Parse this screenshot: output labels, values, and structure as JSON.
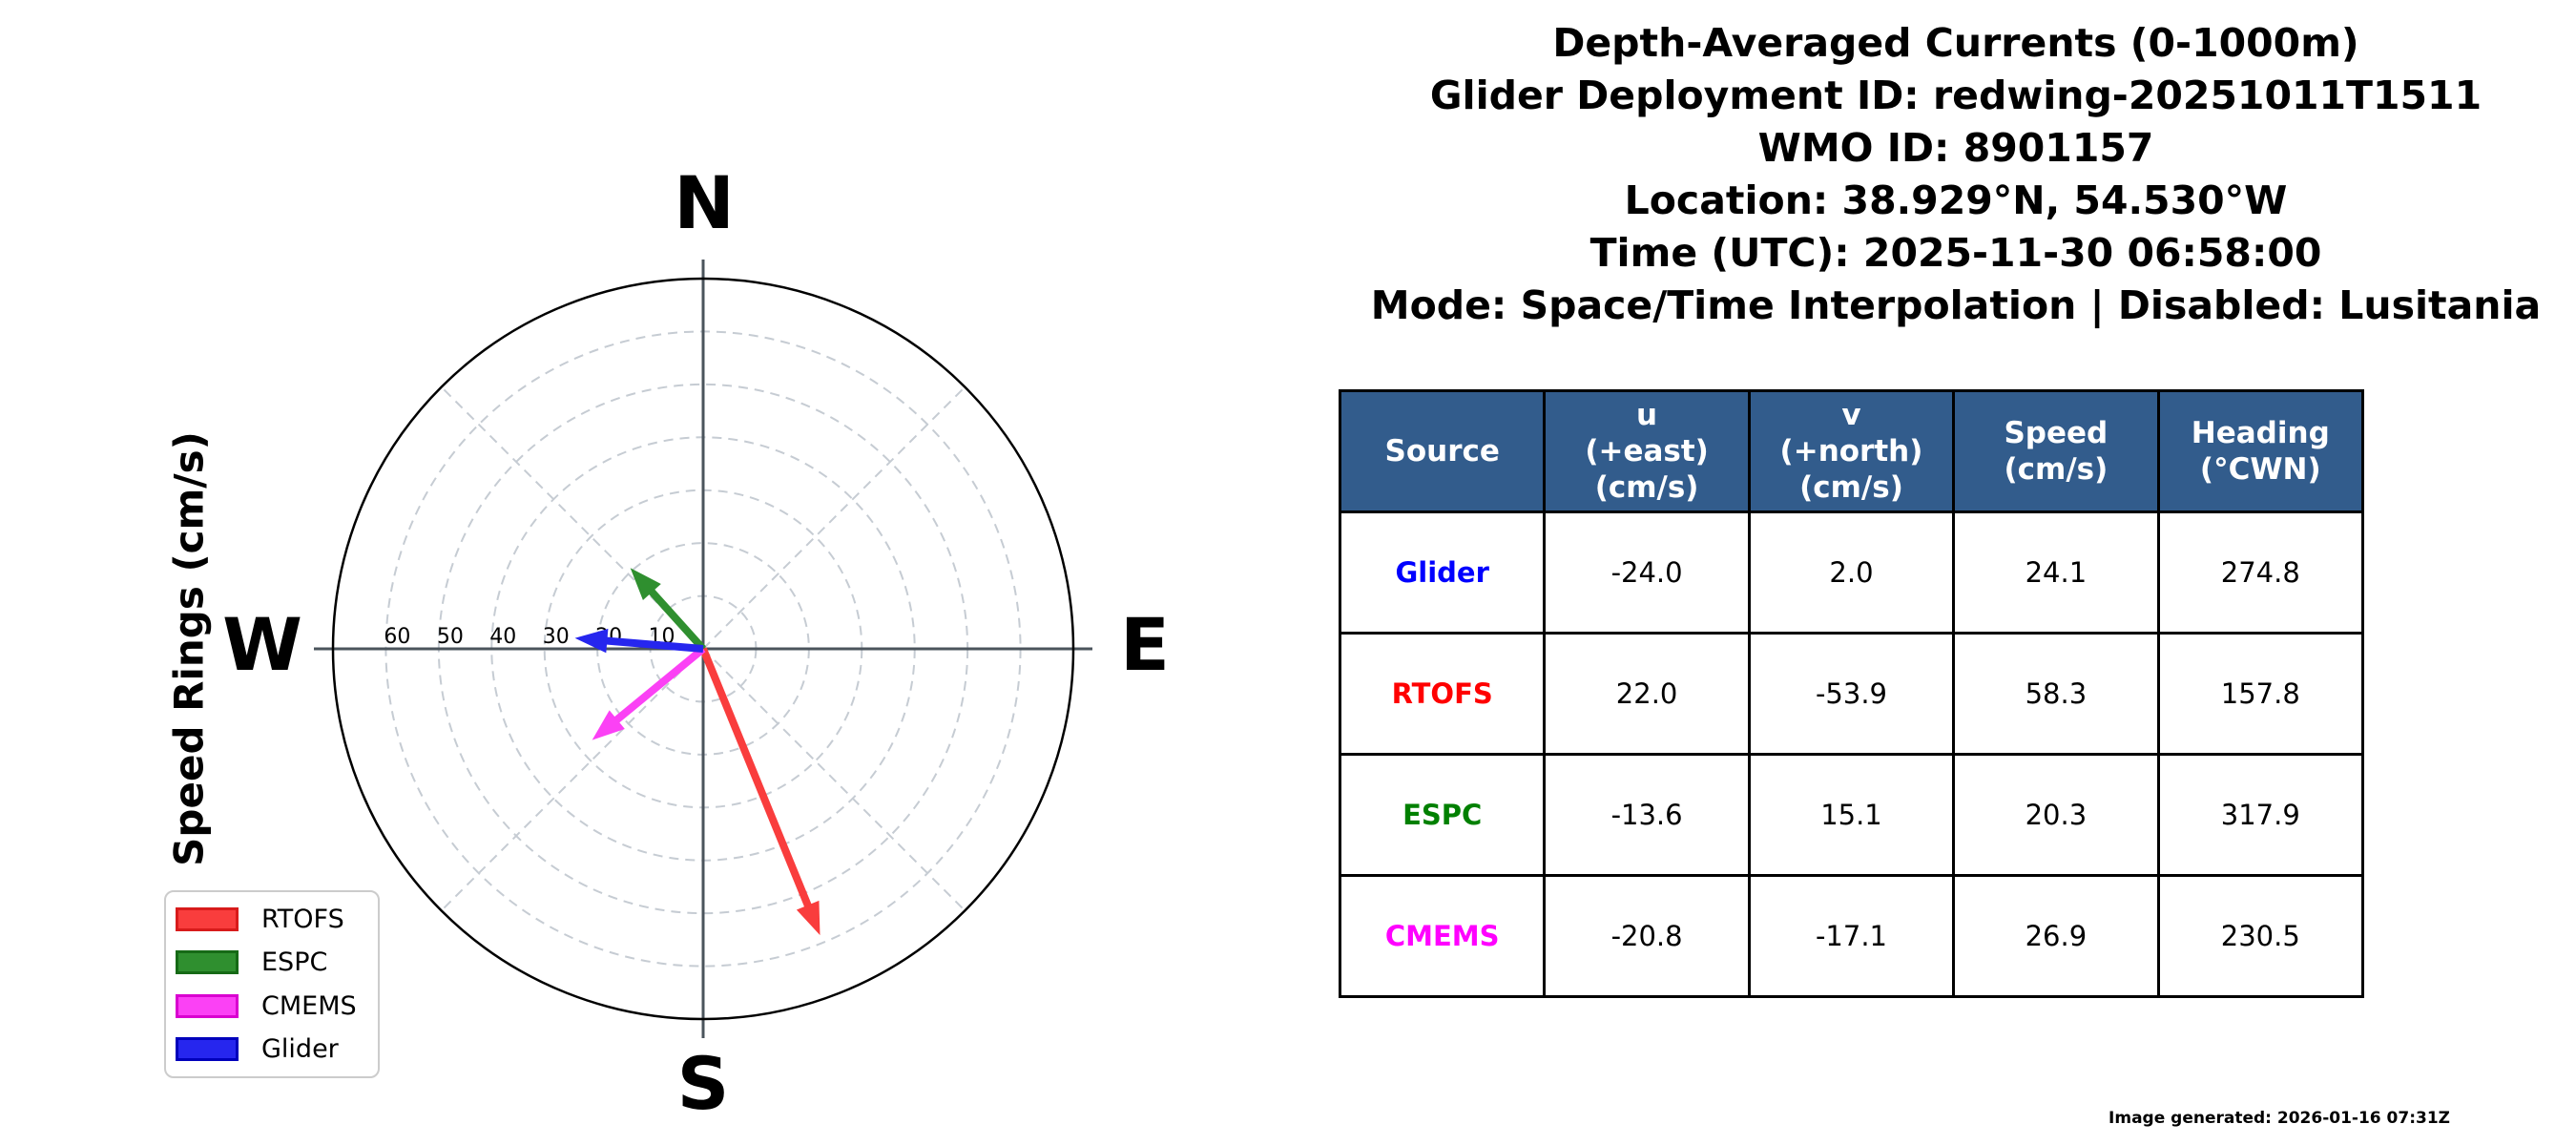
{
  "header": {
    "lines": [
      "Depth-Averaged Currents (0-1000m)",
      "Glider Deployment ID: redwing-20251011T1511",
      "WMO ID: 8901157",
      "Location: 38.929°N, 54.530°W",
      "Time (UTC): 2025-11-30 06:58:00",
      "Mode: Space/Time Interpolation | Disabled: Lusitania"
    ]
  },
  "polar": {
    "cardinal": {
      "north": "N",
      "east": "E",
      "south": "S",
      "west": "W"
    },
    "axis_label": "Speed Rings (cm/s)",
    "ring_ticks_cms": [
      10,
      20,
      30,
      40,
      50,
      60
    ],
    "r_max_cms": 70,
    "grid_color": "#c6ccd3",
    "spoke_color": "#4b545c",
    "outline_color": "#000000"
  },
  "legend": {
    "items": [
      {
        "label": "RTOFS",
        "color": "#f93d3d",
        "edge": "#d81b1b"
      },
      {
        "label": "ESPC",
        "color": "#2f8f2f",
        "edge": "#166a16"
      },
      {
        "label": "CMEMS",
        "color": "#fb41f5",
        "edge": "#d900d0"
      },
      {
        "label": "Glider",
        "color": "#2626ee",
        "edge": "#0000bb"
      }
    ]
  },
  "table": {
    "header_bg": "#325c8c",
    "headers": [
      "Source",
      "u\n(+east)\n(cm/s)",
      "v\n(+north)\n(cm/s)",
      "Speed\n(cm/s)",
      "Heading\n(°CWN)"
    ],
    "rows": [
      {
        "source": "Glider",
        "color": "#0000ff",
        "u": "-24.0",
        "v": "2.0",
        "speed": "24.1",
        "heading": "274.8"
      },
      {
        "source": "RTOFS",
        "color": "#ff0000",
        "u": "22.0",
        "v": "-53.9",
        "speed": "58.3",
        "heading": "157.8"
      },
      {
        "source": "ESPC",
        "color": "#008000",
        "u": "-13.6",
        "v": "15.1",
        "speed": "20.3",
        "heading": "317.9"
      },
      {
        "source": "CMEMS",
        "color": "#ff00ff",
        "u": "-20.8",
        "v": "-17.1",
        "speed": "26.9",
        "heading": "230.5"
      }
    ]
  },
  "footer": "Image generated: 2026-01-16 07:31Z",
  "chart_data": {
    "type": "scatter",
    "subtype": "polar-quiver",
    "title": "Depth-Averaged Currents (0-1000m)",
    "units": "cm/s",
    "radial_axis_label": "Speed Rings (cm/s)",
    "radial_ticks": [
      10,
      20,
      30,
      40,
      50,
      60
    ],
    "radial_max": 70,
    "angle_convention": "compass (N up, E right), heading °CWN",
    "grid": true,
    "legend_position": "lower left",
    "series": [
      {
        "name": "RTOFS",
        "u": 22.0,
        "v": -53.9,
        "speed": 58.3,
        "heading_cwn": 157.8,
        "color_name": "red"
      },
      {
        "name": "ESPC",
        "u": -13.6,
        "v": 15.1,
        "speed": 20.3,
        "heading_cwn": 317.9,
        "color_name": "green"
      },
      {
        "name": "CMEMS",
        "u": -20.8,
        "v": -17.1,
        "speed": 26.9,
        "heading_cwn": 230.5,
        "color_name": "magenta"
      },
      {
        "name": "Glider",
        "u": -24.0,
        "v": 2.0,
        "speed": 24.1,
        "heading_cwn": 274.8,
        "color_name": "blue"
      }
    ]
  }
}
